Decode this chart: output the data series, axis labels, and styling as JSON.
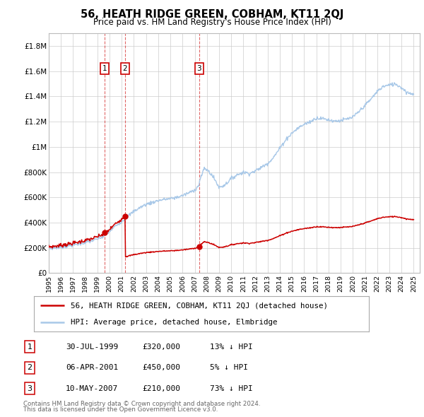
{
  "title": "56, HEATH RIDGE GREEN, COBHAM, KT11 2QJ",
  "subtitle": "Price paid vs. HM Land Registry's House Price Index (HPI)",
  "hpi_label": "HPI: Average price, detached house, Elmbridge",
  "property_label": "56, HEATH RIDGE GREEN, COBHAM, KT11 2QJ (detached house)",
  "footer_line1": "Contains HM Land Registry data © Crown copyright and database right 2024.",
  "footer_line2": "This data is licensed under the Open Government Licence v3.0.",
  "transactions": [
    {
      "num": "1",
      "date": "30-JUL-1999",
      "price": "£320,000",
      "pct": "13% ↓ HPI",
      "year": 1999.58,
      "value": 320000
    },
    {
      "num": "2",
      "date": "06-APR-2001",
      "price": "£450,000",
      "pct": "5% ↓ HPI",
      "year": 2001.27,
      "value": 450000
    },
    {
      "num": "3",
      "date": "10-MAY-2007",
      "price": "£210,000",
      "pct": "73% ↓ HPI",
      "year": 2007.36,
      "value": 210000
    }
  ],
  "hpi_color": "#a8c8e8",
  "property_color": "#cc0000",
  "background_color": "#ffffff",
  "grid_color": "#cccccc",
  "ylim": [
    0,
    1900000
  ],
  "yticks": [
    0,
    200000,
    400000,
    600000,
    800000,
    1000000,
    1200000,
    1400000,
    1600000,
    1800000
  ],
  "ytick_labels": [
    "£0",
    "£200K",
    "£400K",
    "£600K",
    "£800K",
    "£1M",
    "£1.2M",
    "£1.4M",
    "£1.6M",
    "£1.8M"
  ],
  "xlim_start": 1995.0,
  "xlim_end": 2025.5,
  "hpi_anchors": [
    [
      1995.0,
      195000
    ],
    [
      1995.5,
      200000
    ],
    [
      1996.0,
      207000
    ],
    [
      1996.5,
      215000
    ],
    [
      1997.0,
      222000
    ],
    [
      1997.5,
      232000
    ],
    [
      1998.0,
      242000
    ],
    [
      1998.5,
      255000
    ],
    [
      1999.0,
      270000
    ],
    [
      1999.5,
      290000
    ],
    [
      2000.0,
      330000
    ],
    [
      2000.5,
      375000
    ],
    [
      2001.0,
      410000
    ],
    [
      2001.5,
      450000
    ],
    [
      2002.0,
      490000
    ],
    [
      2002.5,
      520000
    ],
    [
      2003.0,
      545000
    ],
    [
      2003.5,
      560000
    ],
    [
      2004.0,
      575000
    ],
    [
      2004.5,
      585000
    ],
    [
      2005.0,
      590000
    ],
    [
      2005.5,
      600000
    ],
    [
      2006.0,
      615000
    ],
    [
      2006.5,
      635000
    ],
    [
      2007.0,
      660000
    ],
    [
      2007.3,
      690000
    ],
    [
      2007.5,
      760000
    ],
    [
      2007.8,
      830000
    ],
    [
      2008.0,
      820000
    ],
    [
      2008.3,
      790000
    ],
    [
      2008.6,
      750000
    ],
    [
      2009.0,
      680000
    ],
    [
      2009.3,
      690000
    ],
    [
      2009.6,
      710000
    ],
    [
      2010.0,
      750000
    ],
    [
      2010.5,
      780000
    ],
    [
      2011.0,
      800000
    ],
    [
      2011.5,
      790000
    ],
    [
      2012.0,
      810000
    ],
    [
      2012.5,
      840000
    ],
    [
      2013.0,
      870000
    ],
    [
      2013.5,
      920000
    ],
    [
      2014.0,
      990000
    ],
    [
      2014.5,
      1060000
    ],
    [
      2015.0,
      1110000
    ],
    [
      2015.5,
      1150000
    ],
    [
      2016.0,
      1180000
    ],
    [
      2016.5,
      1200000
    ],
    [
      2017.0,
      1230000
    ],
    [
      2017.5,
      1225000
    ],
    [
      2018.0,
      1215000
    ],
    [
      2018.5,
      1205000
    ],
    [
      2019.0,
      1210000
    ],
    [
      2019.5,
      1220000
    ],
    [
      2020.0,
      1235000
    ],
    [
      2020.5,
      1280000
    ],
    [
      2021.0,
      1330000
    ],
    [
      2021.5,
      1380000
    ],
    [
      2022.0,
      1440000
    ],
    [
      2022.5,
      1480000
    ],
    [
      2023.0,
      1490000
    ],
    [
      2023.5,
      1500000
    ],
    [
      2024.0,
      1470000
    ],
    [
      2024.5,
      1430000
    ],
    [
      2025.0,
      1420000
    ]
  ]
}
